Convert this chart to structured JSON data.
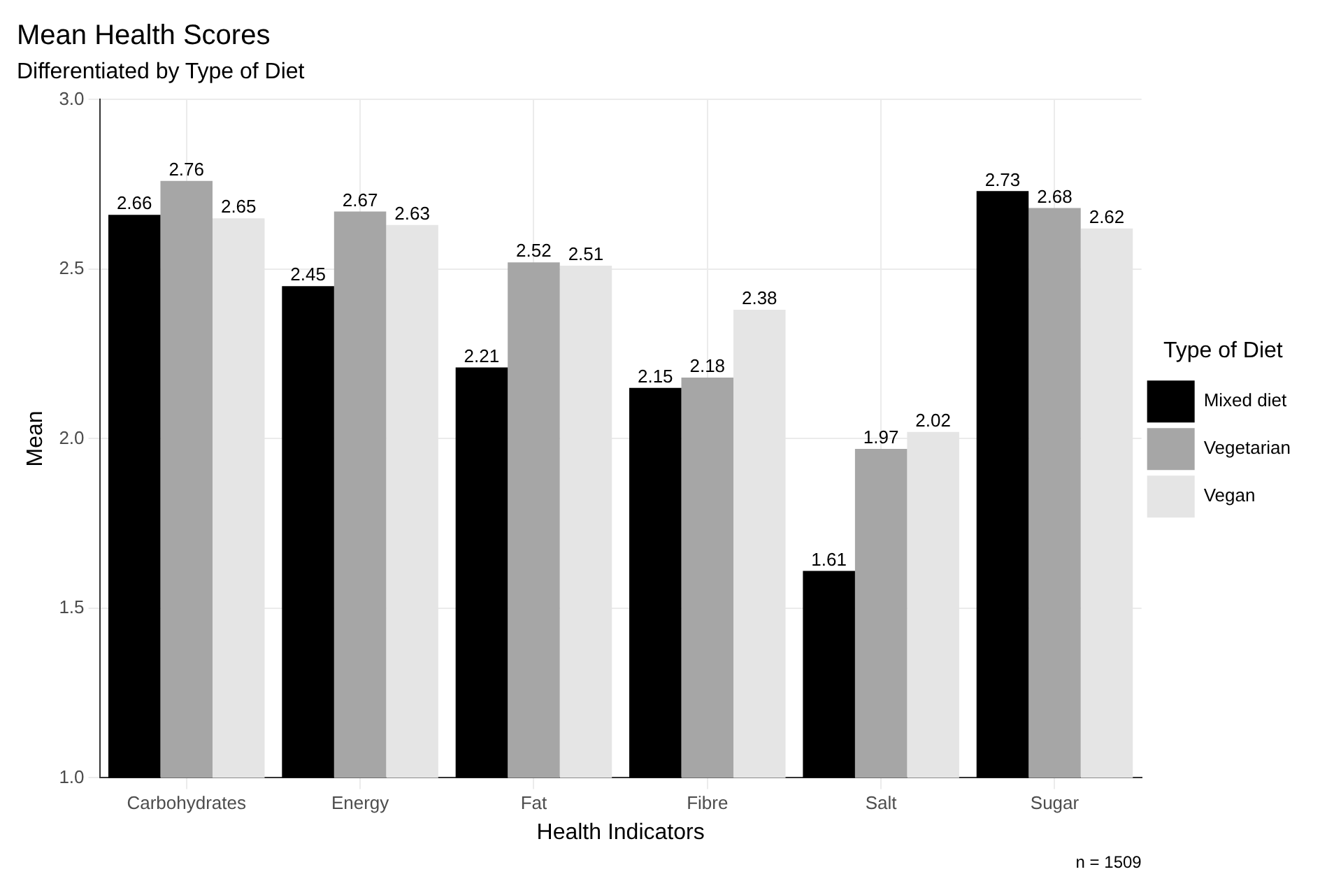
{
  "chart_data": {
    "type": "bar",
    "title": "Mean Health Scores",
    "subtitle": "Differentiated by Type of Diet",
    "xlabel": "Health Indicators",
    "ylabel": "Mean",
    "legend_title": "Type of Diet",
    "annotations": [
      "n = 1509"
    ],
    "categories": [
      "Carbohydrates",
      "Energy",
      "Fat",
      "Fibre",
      "Salt",
      "Sugar"
    ],
    "series": [
      {
        "name": "Mixed diet",
        "color": "#000000",
        "values": [
          2.66,
          2.45,
          2.21,
          2.15,
          1.61,
          2.73
        ]
      },
      {
        "name": "Vegetarian",
        "color": "#a6a6a6",
        "values": [
          2.76,
          2.67,
          2.52,
          2.18,
          1.97,
          2.68
        ]
      },
      {
        "name": "Vegan",
        "color": "#e5e5e5",
        "values": [
          2.65,
          2.63,
          2.51,
          2.38,
          2.02,
          2.62
        ]
      }
    ],
    "ylim": [
      1,
      3
    ],
    "yticks": [
      {
        "value": 1,
        "label": "1.0"
      },
      {
        "value": 1.5,
        "label": "1.5"
      },
      {
        "value": 2,
        "label": "2.0"
      },
      {
        "value": 2.5,
        "label": "2.5"
      },
      {
        "value": 3,
        "label": "3.0"
      }
    ],
    "grid": true,
    "legend": "right",
    "data_labels": true
  }
}
